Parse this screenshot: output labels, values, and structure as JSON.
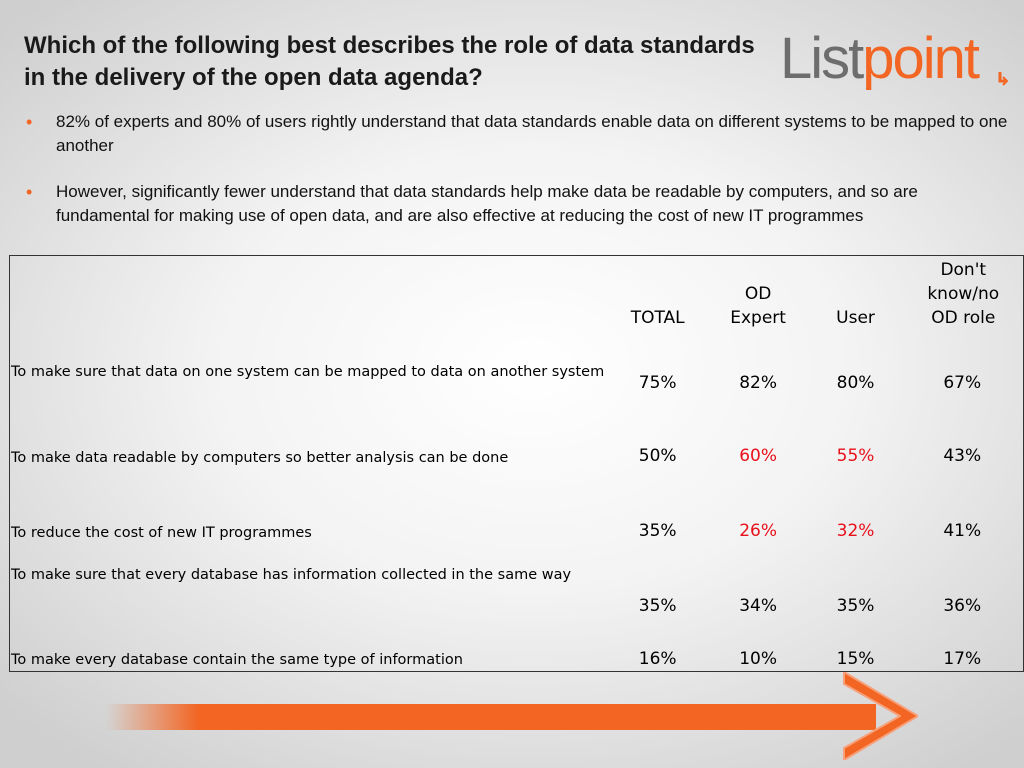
{
  "slide": {
    "title": "Which of the following best describes the role of data standards in the delivery of the open data agenda?",
    "logo": {
      "part1": "List",
      "part2": "point"
    },
    "bullets": [
      "82% of experts and 80% of users rightly understand that data standards enable data on different systems to be mapped to one another",
      "However, significantly fewer understand that data standards help make data be readable by computers, and so are fundamental for making use of open data, and are also effective at reducing the cost of new IT programmes"
    ],
    "colors": {
      "accent": "#f26522",
      "highlight": "#e8101a",
      "logo_grey": "#6d6d6d"
    }
  },
  "table": {
    "headers": [
      "TOTAL",
      "OD Expert",
      "User",
      "Don't know/no OD role"
    ],
    "rows": [
      {
        "label": "To make sure that data on one system can be mapped to data on another system",
        "total": "75%",
        "expert": "82%",
        "user": "80%",
        "dontknow": "67%"
      },
      {
        "label": "To make data readable by computers so better analysis can be done",
        "total": "50%",
        "expert": "60%",
        "user": "55%",
        "dontknow": "43%"
      },
      {
        "label": "To reduce the cost of new IT programmes",
        "total": "35%",
        "expert": "26%",
        "user": "32%",
        "dontknow": "41%"
      },
      {
        "label": "To make sure that every database has information collected in the same way",
        "total": "35%",
        "expert": "34%",
        "user": "35%",
        "dontknow": "36%"
      },
      {
        "label": "To make every database contain the same type of information",
        "total": "16%",
        "expert": "10%",
        "user": "15%",
        "dontknow": "17%"
      }
    ]
  }
}
